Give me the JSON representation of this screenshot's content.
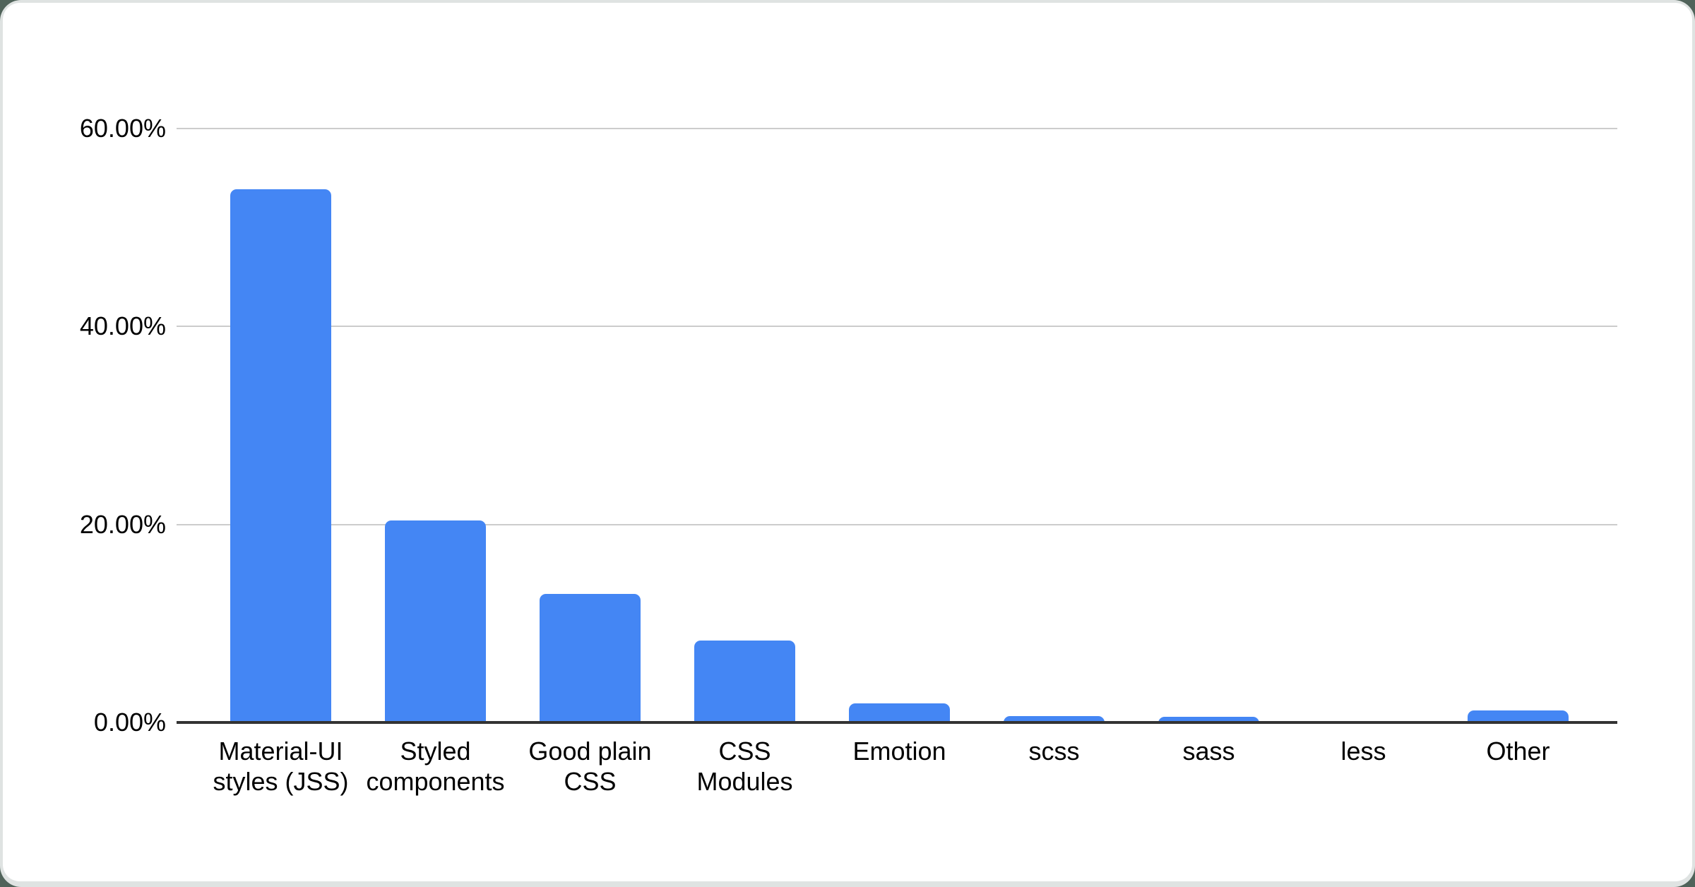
{
  "chart_data": {
    "type": "bar",
    "title": "",
    "xlabel": "",
    "ylabel": "",
    "categories": [
      "Material-UI styles (JSS)",
      "Styled components",
      "Good plain CSS",
      "CSS Modules",
      "Emotion",
      "scss",
      "sass",
      "less",
      "Other"
    ],
    "category_label_lines": [
      [
        "Material-UI",
        "styles (JSS)"
      ],
      [
        "Styled",
        "components"
      ],
      [
        "Good plain",
        "CSS"
      ],
      [
        "CSS",
        "Modules"
      ],
      [
        "Emotion"
      ],
      [
        "scss"
      ],
      [
        "sass"
      ],
      [
        "less"
      ],
      [
        "Other"
      ]
    ],
    "values": [
      53.84,
      20.41,
      13.01,
      8.31,
      1.9,
      0.64,
      0.57,
      0.13,
      1.19
    ],
    "value_unit": "%",
    "ylim": [
      0,
      60
    ],
    "yticks": [
      {
        "label": "60.00%",
        "value": 60
      },
      {
        "label": "40.00%",
        "value": 40
      },
      {
        "label": "20.00%",
        "value": 20
      },
      {
        "label": "0.00%",
        "value": 0
      }
    ],
    "grid": true,
    "legend": false,
    "bar_color": "#4486f4"
  },
  "colors": {
    "bar": "#4486f4",
    "gridline": "#cccccc",
    "axis_line": "#333333",
    "label_text": "#000000",
    "card_background": "#ffffff",
    "card_ring": "#dfe3e2",
    "page_background": "#50635a"
  }
}
